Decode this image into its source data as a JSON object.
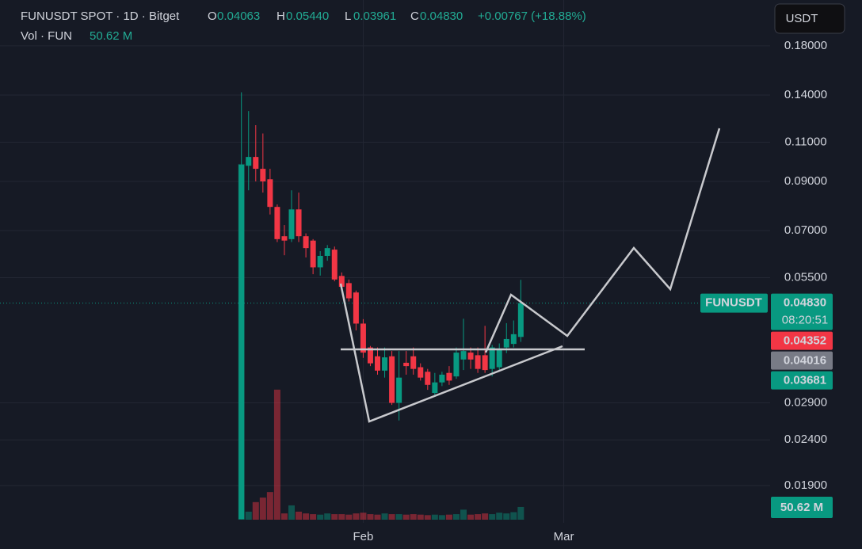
{
  "chart_data": {
    "type": "candlestick",
    "header": {
      "symbol": "FUNUSDT SPOT · 1D · Bitget",
      "open_key": "O",
      "open": "0.04063",
      "high_key": "H",
      "high": "0.05440",
      "low_key": "L",
      "low": "0.03961",
      "close_key": "C",
      "close": "0.04830",
      "change": "+0.00767 (+18.88%)",
      "volume_key": "Vol · FUN",
      "volume": "50.62 M"
    },
    "currency_button": "USDT",
    "symbol_tag": "FUNUSDT",
    "countdown": "08:20:51",
    "log_scale": true,
    "grid": true,
    "up_color": "#089981",
    "down_color": "#f23645",
    "x": [
      0,
      1,
      2,
      3,
      4,
      5,
      6,
      7,
      8,
      9,
      10,
      11,
      12,
      13,
      14,
      15,
      16,
      17,
      18,
      19,
      20,
      21,
      22,
      23,
      24,
      25,
      26,
      27,
      28,
      29,
      30,
      31,
      32,
      33,
      34,
      35,
      36,
      37,
      38,
      39
    ],
    "open": [
      0.016,
      0.0975,
      0.102,
      0.096,
      0.091,
      0.079,
      0.068,
      0.067,
      0.078,
      0.068,
      0.0665,
      0.058,
      0.0615,
      0.0635,
      0.0555,
      0.0535,
      0.051,
      0.0435,
      0.0385,
      0.0368,
      0.0342,
      0.0368,
      0.029,
      0.0356,
      0.0368,
      0.0348,
      0.034,
      0.0305,
      0.0322,
      0.0338,
      0.0332,
      0.0362,
      0.0375,
      0.037,
      0.037,
      0.0345,
      0.0348,
      0.0385,
      0.0392,
      0.04063
    ],
    "high": [
      0.142,
      0.129,
      0.12,
      0.115,
      0.096,
      0.08,
      0.072,
      0.086,
      0.085,
      0.069,
      0.067,
      0.063,
      0.065,
      0.0645,
      0.0565,
      0.0545,
      0.0515,
      0.0445,
      0.0388,
      0.0385,
      0.0385,
      0.0378,
      0.0378,
      0.0378,
      0.0385,
      0.0355,
      0.0345,
      0.0338,
      0.034,
      0.035,
      0.0385,
      0.0446,
      0.0385,
      0.0385,
      0.043,
      0.039,
      0.0393,
      0.0436,
      0.0442,
      0.0544
    ],
    "low": [
      0.016,
      0.086,
      0.09,
      0.085,
      0.076,
      0.066,
      0.0617,
      0.066,
      0.066,
      0.061,
      0.056,
      0.0556,
      0.06,
      0.054,
      0.0518,
      0.0487,
      0.042,
      0.0365,
      0.035,
      0.0335,
      0.033,
      0.0287,
      0.0265,
      0.0335,
      0.0335,
      0.0325,
      0.031,
      0.03,
      0.0316,
      0.0318,
      0.0328,
      0.0343,
      0.0345,
      0.0338,
      0.0338,
      0.0332,
      0.0342,
      0.0374,
      0.0385,
      0.03961
    ],
    "close": [
      0.098,
      0.102,
      0.096,
      0.09,
      0.079,
      0.067,
      0.0665,
      0.078,
      0.068,
      0.064,
      0.058,
      0.0615,
      0.064,
      0.0545,
      0.0525,
      0.0495,
      0.0435,
      0.0375,
      0.0355,
      0.0342,
      0.0366,
      0.029,
      0.033,
      0.035,
      0.0345,
      0.033,
      0.0318,
      0.0322,
      0.0335,
      0.0325,
      0.0375,
      0.0378,
      0.0362,
      0.0345,
      0.0343,
      0.0385,
      0.0383,
      0.0402,
      0.0412,
      0.0483
    ],
    "volume": [
      1417,
      32,
      70,
      88,
      110,
      518,
      25,
      57,
      32,
      25,
      22,
      20,
      25,
      22,
      22,
      20,
      25,
      28,
      22,
      20,
      25,
      22,
      22,
      20,
      22,
      20,
      18,
      20,
      18,
      20,
      22,
      40,
      20,
      22,
      25,
      22,
      28,
      25,
      30,
      50.62
    ],
    "volume_ylim": [
      0,
      2070
    ],
    "xlim": [
      -33.7,
      73.8
    ],
    "xticks": [
      {
        "value": 17,
        "label": "Feb"
      },
      {
        "value": 45,
        "label": "Mar"
      }
    ],
    "ylim": [
      0.0157,
      0.2276
    ],
    "yticks": [
      {
        "value": 0.18,
        "label": "0.18000"
      },
      {
        "value": 0.14,
        "label": "0.14000"
      },
      {
        "value": 0.11,
        "label": "0.11000"
      },
      {
        "value": 0.09,
        "label": "0.09000"
      },
      {
        "value": 0.07,
        "label": "0.07000"
      },
      {
        "value": 0.055,
        "label": "0.05500"
      },
      {
        "value": 0.029,
        "label": "0.02900"
      },
      {
        "value": 0.024,
        "label": "0.02400"
      },
      {
        "value": 0.019,
        "label": "0.01900"
      }
    ],
    "price_tags": [
      {
        "value": 0.0483,
        "label": "0.04830",
        "color": "#089981"
      },
      {
        "value": 0.04352,
        "label": "0.04352",
        "color": "#f23645"
      },
      {
        "value": 0.04016,
        "label": "0.04016",
        "color": "#787b86"
      },
      {
        "value": 0.03681,
        "label": "0.03681",
        "color": "#089981"
      }
    ]
  }
}
